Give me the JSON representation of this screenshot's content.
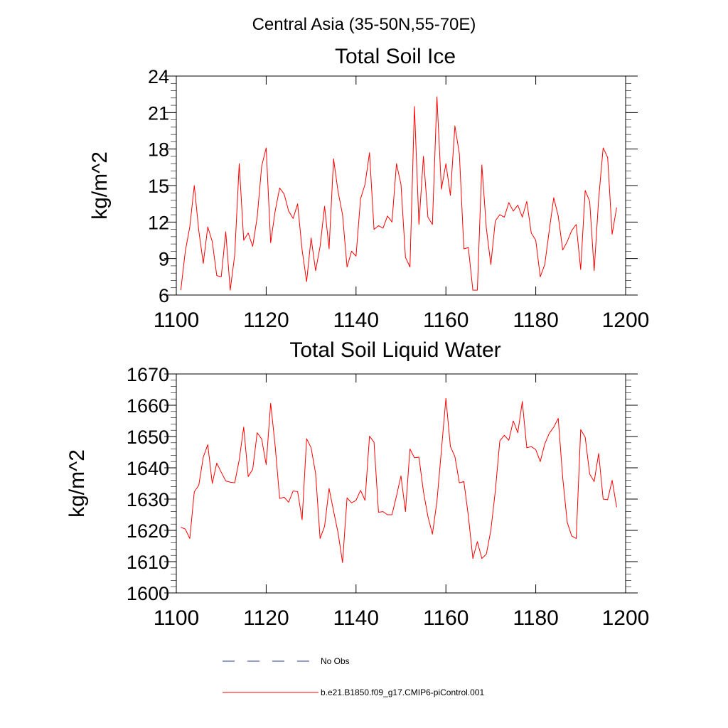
{
  "suptitle": "Central Asia (35-50N,55-70E)",
  "colors": {
    "series": "#ff0000",
    "obs": "#2a3a8a",
    "axes": "#000000"
  },
  "legend": [
    {
      "label": "No Obs",
      "style": "dashed",
      "color": "#2a3a8a"
    },
    {
      "label": "b.e21.B1850.f09_g17.CMIP6-piControl.001",
      "style": "solid",
      "color": "#ff0000"
    }
  ],
  "chart_data": [
    {
      "type": "line",
      "title": "Total Soil Ice",
      "xlabel": "",
      "ylabel": "kg/m^2",
      "xlim": [
        1100,
        1200
      ],
      "ylim": [
        6,
        24
      ],
      "xticks": [
        1100,
        1120,
        1140,
        1160,
        1180,
        1200
      ],
      "yticks": [
        6,
        9,
        12,
        15,
        18,
        21,
        24
      ],
      "series": [
        {
          "name": "b.e21.B1850.f09_g17.CMIP6-piControl.001",
          "x_start": 1101,
          "values": [
            6.4,
            9.6,
            11.6,
            15.0,
            11.3,
            8.6,
            11.6,
            10.4,
            7.6,
            7.5,
            11.2,
            6.4,
            9.3,
            16.8,
            10.5,
            11.1,
            10.0,
            12.4,
            16.6,
            18.1,
            10.3,
            12.9,
            14.8,
            14.3,
            12.9,
            12.3,
            13.5,
            9.7,
            7.1,
            10.7,
            8.0,
            10.0,
            13.3,
            9.8,
            17.2,
            14.5,
            12.6,
            8.3,
            9.6,
            9.2,
            13.9,
            15.1,
            17.7,
            11.4,
            11.7,
            11.5,
            12.5,
            12.0,
            16.8,
            15.1,
            9.1,
            8.3,
            21.5,
            11.8,
            17.4,
            12.4,
            11.8,
            22.3,
            14.7,
            16.8,
            14.2,
            19.9,
            17.6,
            9.8,
            9.9,
            6.4,
            6.4,
            16.7,
            11.5,
            8.5,
            12.1,
            12.6,
            12.4,
            13.6,
            12.9,
            13.4,
            12.4,
            13.7,
            11.1,
            10.5,
            7.5,
            8.5,
            11.3,
            14.0,
            12.5,
            9.7,
            10.4,
            11.3,
            11.8,
            8.1,
            14.6,
            13.7,
            8.0,
            13.9,
            18.1,
            17.3,
            11.0,
            13.2
          ]
        }
      ]
    },
    {
      "type": "line",
      "title": "Total Soil Liquid Water",
      "xlabel": "",
      "ylabel": "kg/m^2",
      "xlim": [
        1100,
        1200
      ],
      "ylim": [
        1600,
        1670
      ],
      "xticks": [
        1100,
        1120,
        1140,
        1160,
        1180,
        1200
      ],
      "yticks": [
        1600,
        1610,
        1620,
        1630,
        1640,
        1650,
        1660,
        1670
      ],
      "series": [
        {
          "name": "b.e21.B1850.f09_g17.CMIP6-piControl.001",
          "x_start": 1101,
          "values": [
            1621,
            1620.4,
            1617.4,
            1632.3,
            1634.4,
            1643.4,
            1647.4,
            1635.0,
            1641.5,
            1638.6,
            1635.8,
            1635.4,
            1635.2,
            1642.5,
            1653.0,
            1637.2,
            1639.5,
            1651.2,
            1649.2,
            1641.0,
            1660.6,
            1647.0,
            1630.2,
            1630.6,
            1629.0,
            1632.6,
            1632.4,
            1623.4,
            1649.3,
            1646.4,
            1638.2,
            1617.4,
            1621.3,
            1633.4,
            1626.2,
            1619.2,
            1609.7,
            1630.4,
            1628.8,
            1629.6,
            1632.8,
            1629.6,
            1650.1,
            1648.2,
            1625.8,
            1626.0,
            1625.0,
            1625.0,
            1631.0,
            1637.4,
            1626.0,
            1646.0,
            1643.2,
            1643.4,
            1632.4,
            1624.4,
            1618.8,
            1629.2,
            1645.6,
            1662.2,
            1646.8,
            1643.6,
            1635.2,
            1635.6,
            1624.6,
            1611.0,
            1616.4,
            1611.0,
            1612.4,
            1620.0,
            1632.6,
            1648.6,
            1650.4,
            1648.8,
            1655.0,
            1651.2,
            1661.2,
            1646.4,
            1646.8,
            1645.8,
            1642.0,
            1647.6,
            1651.0,
            1653.0,
            1655.8,
            1636.8,
            1622.6,
            1618.2,
            1617.4,
            1652.2,
            1649.8,
            1638.0,
            1635.6,
            1644.6,
            1630.0,
            1629.8,
            1636.0,
            1627.4
          ]
        }
      ]
    }
  ]
}
